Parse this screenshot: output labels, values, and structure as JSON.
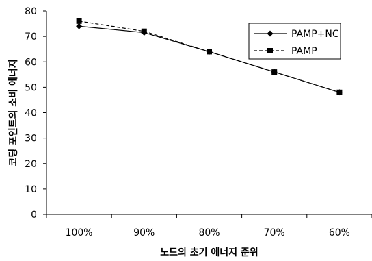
{
  "chart_data": {
    "type": "line",
    "title": "",
    "xlabel": "노드의 초기 에너지 준위",
    "ylabel": "코딩 포인트의 소비 에너지",
    "categories": [
      "100%",
      "90%",
      "80%",
      "70%",
      "60%"
    ],
    "ylim": [
      0,
      80
    ],
    "yticks": [
      0,
      10,
      20,
      30,
      40,
      50,
      60,
      70,
      80
    ],
    "grid": false,
    "legend_position": "top-right",
    "series": [
      {
        "name": "PAMP+NC",
        "marker": "diamond",
        "line_style": "solid",
        "color": "#000000",
        "values": [
          74,
          71.5,
          64,
          56,
          48
        ]
      },
      {
        "name": "PAMP",
        "marker": "square",
        "line_style": "dashed",
        "color": "#000000",
        "values": [
          76,
          72,
          64,
          56,
          48
        ]
      }
    ]
  }
}
